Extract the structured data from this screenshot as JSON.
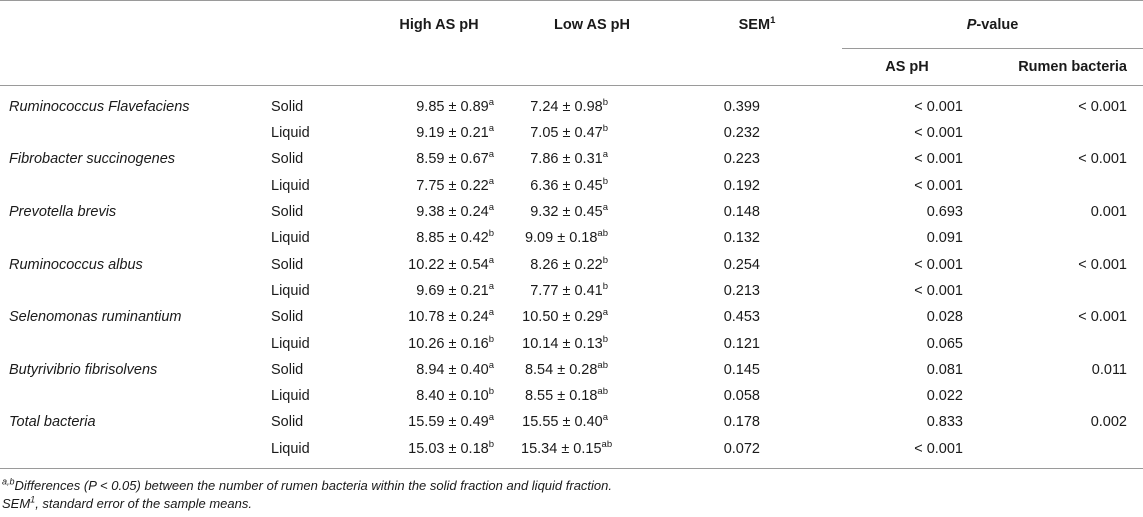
{
  "header": {
    "high": "High AS pH",
    "low": "Low AS pH",
    "sem": "SEM",
    "sem_sup": "1",
    "pvalue_italic": "P",
    "pvalue_rest": "-value",
    "as_ph": "AS pH",
    "rumen_bacteria": "Rumen bacteria"
  },
  "rows": [
    {
      "bacterium": "Ruminococcus Flavefaciens",
      "fraction": "Solid",
      "high": "9.85 ± 0.89",
      "high_sup": "a",
      "low": "7.24 ± 0.98",
      "low_sup": "b",
      "sem": "0.399",
      "as_ph": "< 0.001",
      "rumen": "< 0.001"
    },
    {
      "bacterium": "",
      "fraction": "Liquid",
      "high": "9.19 ± 0.21",
      "high_sup": "a",
      "low": "7.05 ± 0.47",
      "low_sup": "b",
      "sem": "0.232",
      "as_ph": "< 0.001",
      "rumen": ""
    },
    {
      "bacterium": "Fibrobacter succinogenes",
      "fraction": "Solid",
      "high": "8.59 ± 0.67",
      "high_sup": "a",
      "low": "7.86 ± 0.31",
      "low_sup": "a",
      "sem": "0.223",
      "as_ph": "< 0.001",
      "rumen": "< 0.001"
    },
    {
      "bacterium": "",
      "fraction": "Liquid",
      "high": "7.75 ± 0.22",
      "high_sup": "a",
      "low": "6.36 ± 0.45",
      "low_sup": "b",
      "sem": "0.192",
      "as_ph": "< 0.001",
      "rumen": ""
    },
    {
      "bacterium": "Prevotella brevis",
      "fraction": "Solid",
      "high": "9.38 ± 0.24",
      "high_sup": "a",
      "low": "9.32 ± 0.45",
      "low_sup": "a",
      "sem": "0.148",
      "as_ph": "0.693",
      "rumen": "0.001"
    },
    {
      "bacterium": "",
      "fraction": "Liquid",
      "high": "8.85 ± 0.42",
      "high_sup": "b",
      "low": "9.09 ± 0.18",
      "low_sup": "ab",
      "sem": "0.132",
      "as_ph": "0.091",
      "rumen": ""
    },
    {
      "bacterium": "Ruminococcus albus",
      "fraction": "Solid",
      "high": "10.22 ± 0.54",
      "high_sup": "a",
      "low": "8.26 ± 0.22",
      "low_sup": "b",
      "sem": "0.254",
      "as_ph": "< 0.001",
      "rumen": "< 0.001"
    },
    {
      "bacterium": "",
      "fraction": "Liquid",
      "high": "9.69 ± 0.21",
      "high_sup": "a",
      "low": "7.77 ± 0.41",
      "low_sup": "b",
      "sem": "0.213",
      "as_ph": "< 0.001",
      "rumen": ""
    },
    {
      "bacterium": "Selenomonas ruminantium",
      "fraction": "Solid",
      "high": "10.78 ± 0.24",
      "high_sup": "a",
      "low": "10.50 ± 0.29",
      "low_sup": "a",
      "sem": "0.453",
      "as_ph": "0.028",
      "rumen": "< 0.001"
    },
    {
      "bacterium": "",
      "fraction": "Liquid",
      "high": "10.26 ± 0.16",
      "high_sup": "b",
      "low": "10.14 ± 0.13",
      "low_sup": "b",
      "sem": "0.121",
      "as_ph": "0.065",
      "rumen": ""
    },
    {
      "bacterium": "Butyrivibrio fibrisolvens",
      "fraction": "Solid",
      "high": "8.94 ± 0.40",
      "high_sup": "a",
      "low": "8.54 ± 0.28",
      "low_sup": "ab",
      "sem": "0.145",
      "as_ph": "0.081",
      "rumen": "0.011"
    },
    {
      "bacterium": "",
      "fraction": "Liquid",
      "high": "8.40 ± 0.10",
      "high_sup": "b",
      "low": "8.55 ± 0.18",
      "low_sup": "ab",
      "sem": "0.058",
      "as_ph": "0.022",
      "rumen": ""
    },
    {
      "bacterium": "Total bacteria",
      "fraction": "Solid",
      "high": "15.59 ± 0.49",
      "high_sup": "a",
      "low": "15.55 ± 0.40",
      "low_sup": "a",
      "sem": "0.178",
      "as_ph": "0.833",
      "rumen": "0.002"
    },
    {
      "bacterium": "",
      "fraction": "Liquid",
      "high": "15.03 ± 0.18",
      "high_sup": "b",
      "low": "15.34 ± 0.15",
      "low_sup": "ab",
      "sem": "0.072",
      "as_ph": "< 0.001",
      "rumen": ""
    }
  ],
  "footnotes": {
    "note1_sup": "a,b",
    "note1_text": "Differences (P < 0.05) between the number of rumen bacteria within the solid fraction and liquid fraction.",
    "note2_label": "SEM",
    "note2_sup": "1",
    "note2_text": ", standard error of the sample means."
  }
}
